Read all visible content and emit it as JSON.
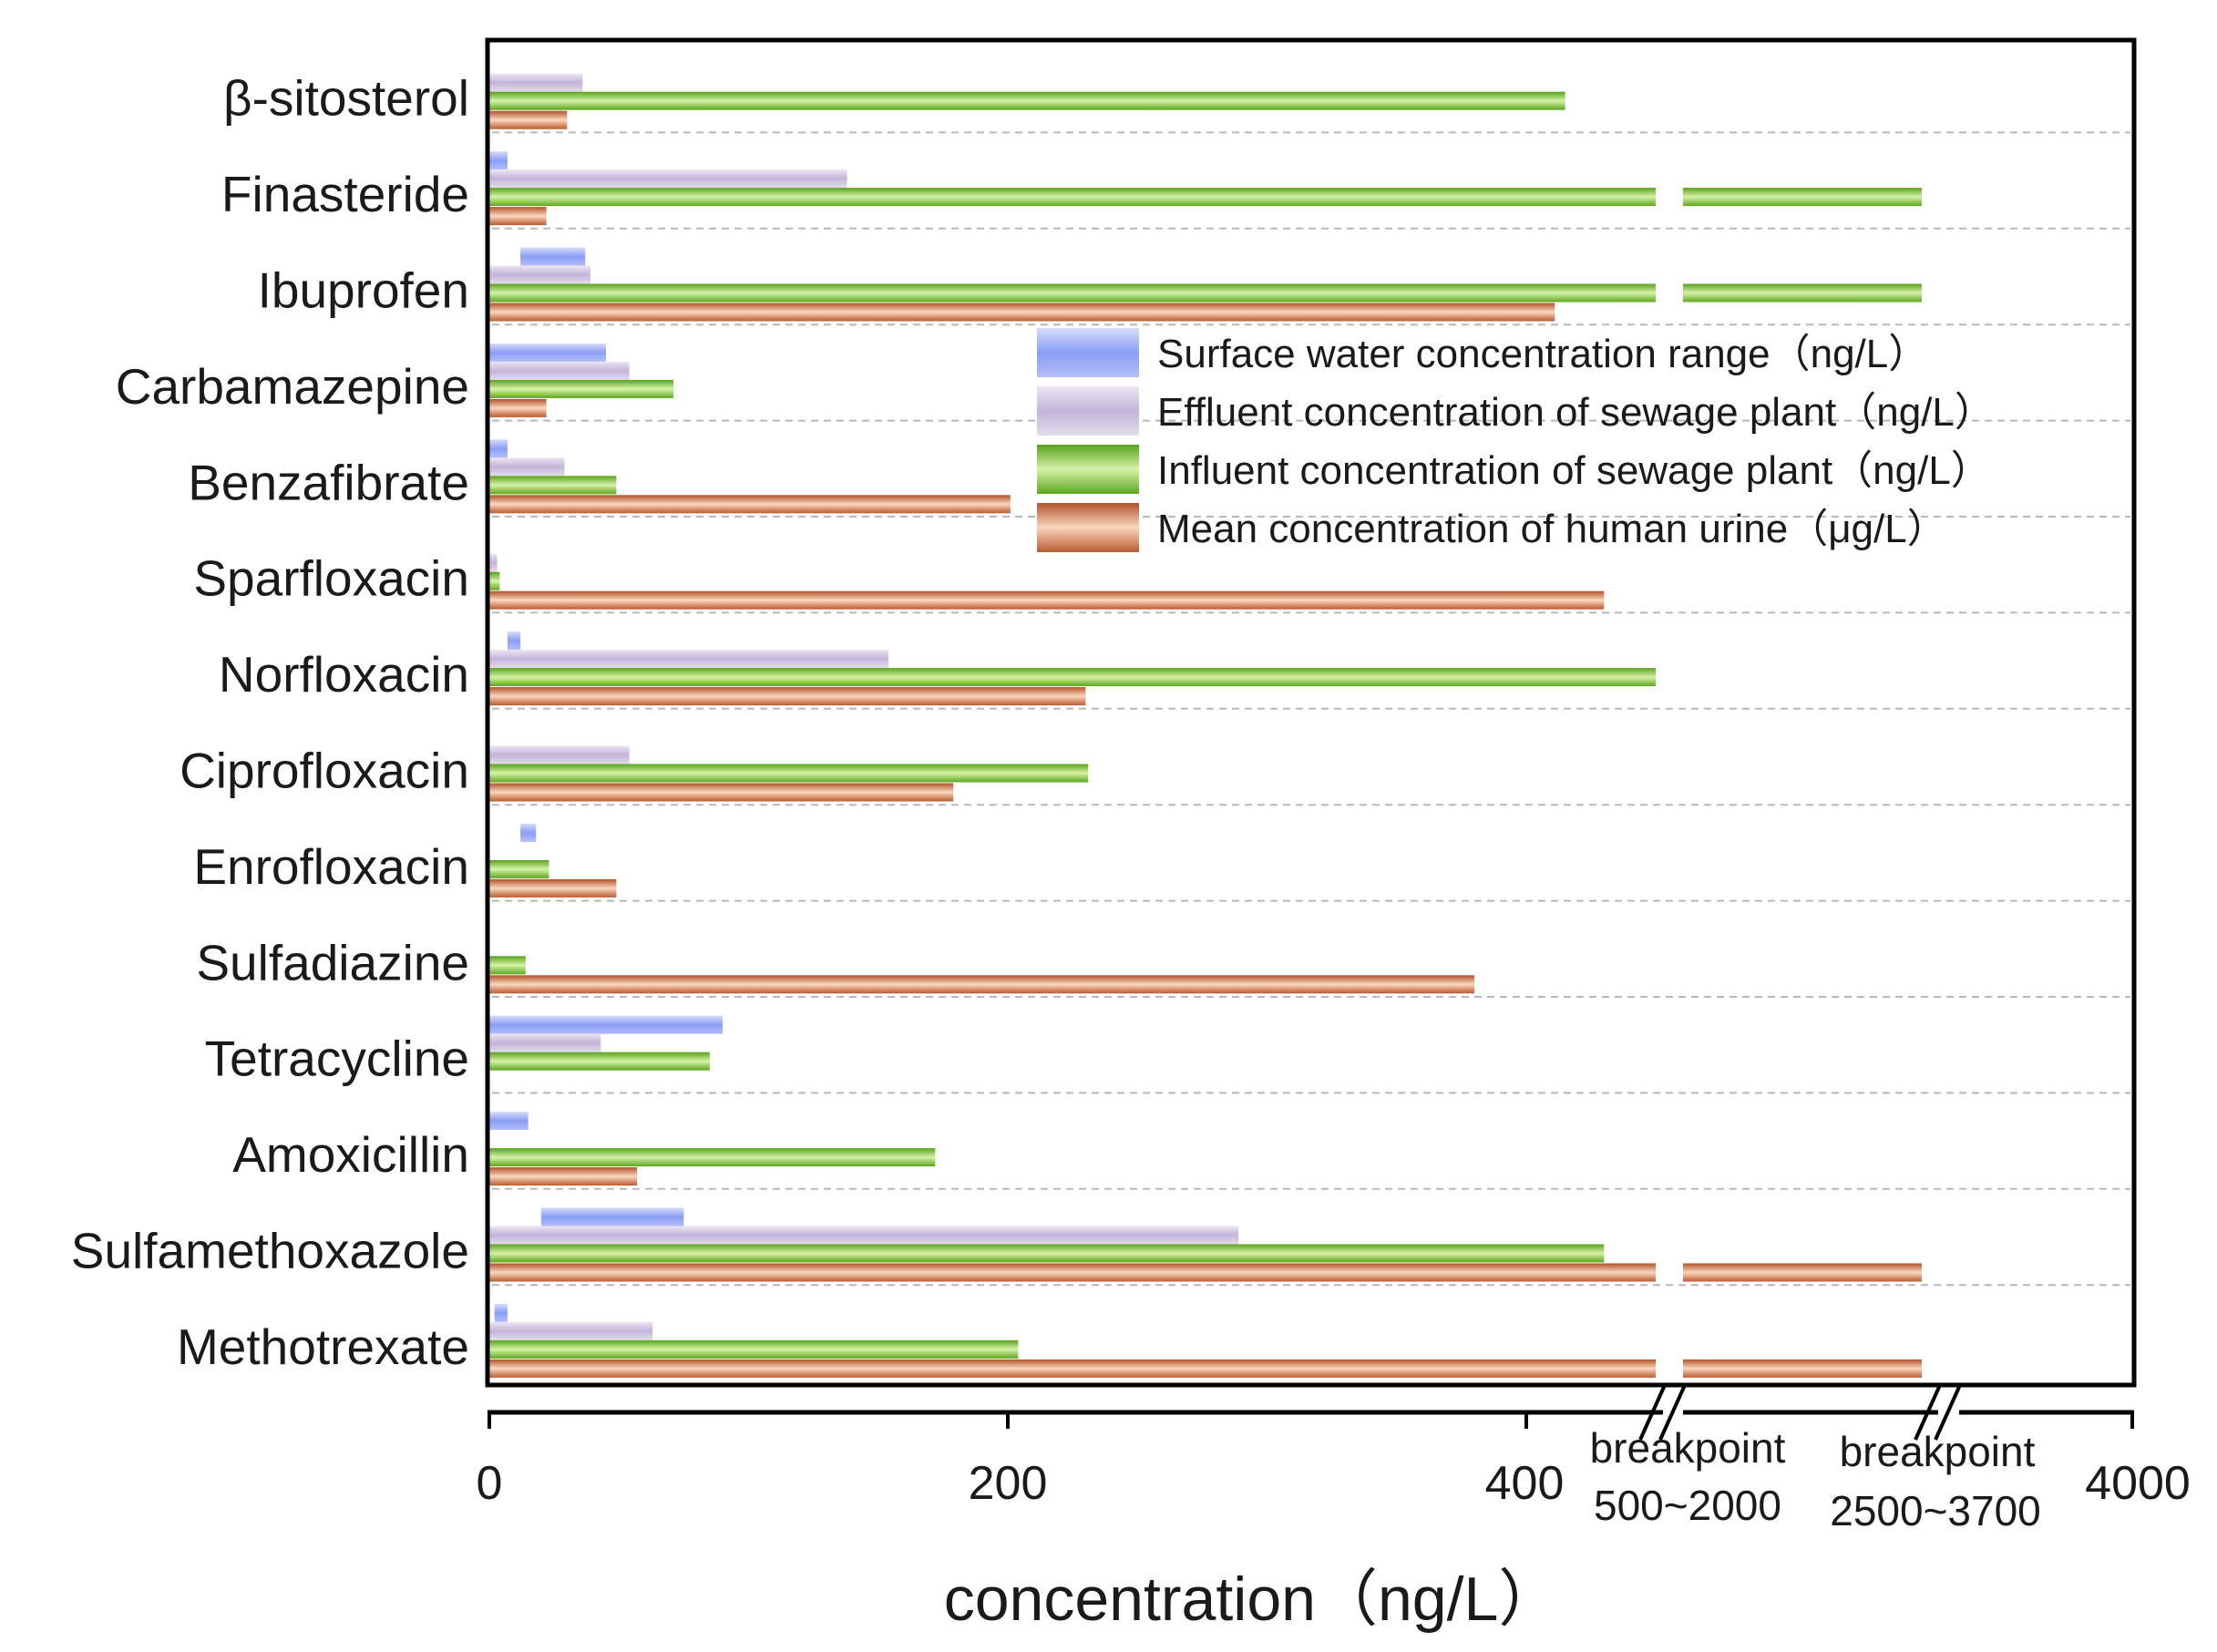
{
  "chart_data": {
    "type": "bar",
    "orientation": "horizontal",
    "xlabel": "concentration（ng/L）",
    "ylabel": "",
    "categories": [
      "β-sitosterol",
      "Finasteride",
      "Ibuprofen",
      "Carbamazepine",
      "Benzafibrate",
      "Sparfloxacin",
      "Norfloxacin",
      "Ciprofloxacin",
      "Enrofloxacin",
      "Sulfadiazine",
      "Tetracycline",
      "Amoxicillin",
      "Sulfamethoxazole",
      "Methotrexate"
    ],
    "x_ticks": [
      "0",
      "200",
      "400",
      "4000"
    ],
    "axis_segments": [
      {
        "from": 0,
        "to": 450
      },
      {
        "from": 2000,
        "to": 2500,
        "label": [
          "breakpoint",
          "500~2000"
        ]
      },
      {
        "from": 3700,
        "to": 4000,
        "label": [
          "breakpoint",
          "2500~3700"
        ]
      }
    ],
    "series": [
      {
        "name": "Surface water concentration range（ng/L）",
        "color": "#8a9ef5",
        "ranges": [
          null,
          [
            0,
            7
          ],
          [
            12,
            37
          ],
          [
            0,
            45
          ],
          [
            0,
            7
          ],
          null,
          [
            7,
            12
          ],
          null,
          [
            12,
            18
          ],
          null,
          [
            0,
            90
          ],
          [
            0,
            15
          ],
          [
            20,
            75
          ],
          [
            2,
            7
          ]
        ]
      },
      {
        "name": "Effluent concentration of sewage plant（ng/L）",
        "color": "#cfc2df",
        "values": [
          36,
          138,
          39,
          54,
          29,
          3,
          154,
          54,
          0,
          0,
          43,
          0,
          289,
          63
        ]
      },
      {
        "name": "Influent concentration of sewage plant（ng/L）",
        "color": "#7cc43a",
        "values": [
          415,
          3600,
          3200,
          71,
          49,
          4,
          450,
          231,
          23,
          14,
          85,
          172,
          430,
          204
        ]
      },
      {
        "name": "Mean concentration of human urine（μg/L）",
        "color": "#e99b72",
        "values": [
          30,
          22,
          411,
          22,
          201,
          430,
          230,
          179,
          49,
          380,
          0,
          57,
          3000,
          2850
        ]
      }
    ],
    "legend_position": "upper-right inside plot",
    "grid": "horizontal dashed separators"
  }
}
